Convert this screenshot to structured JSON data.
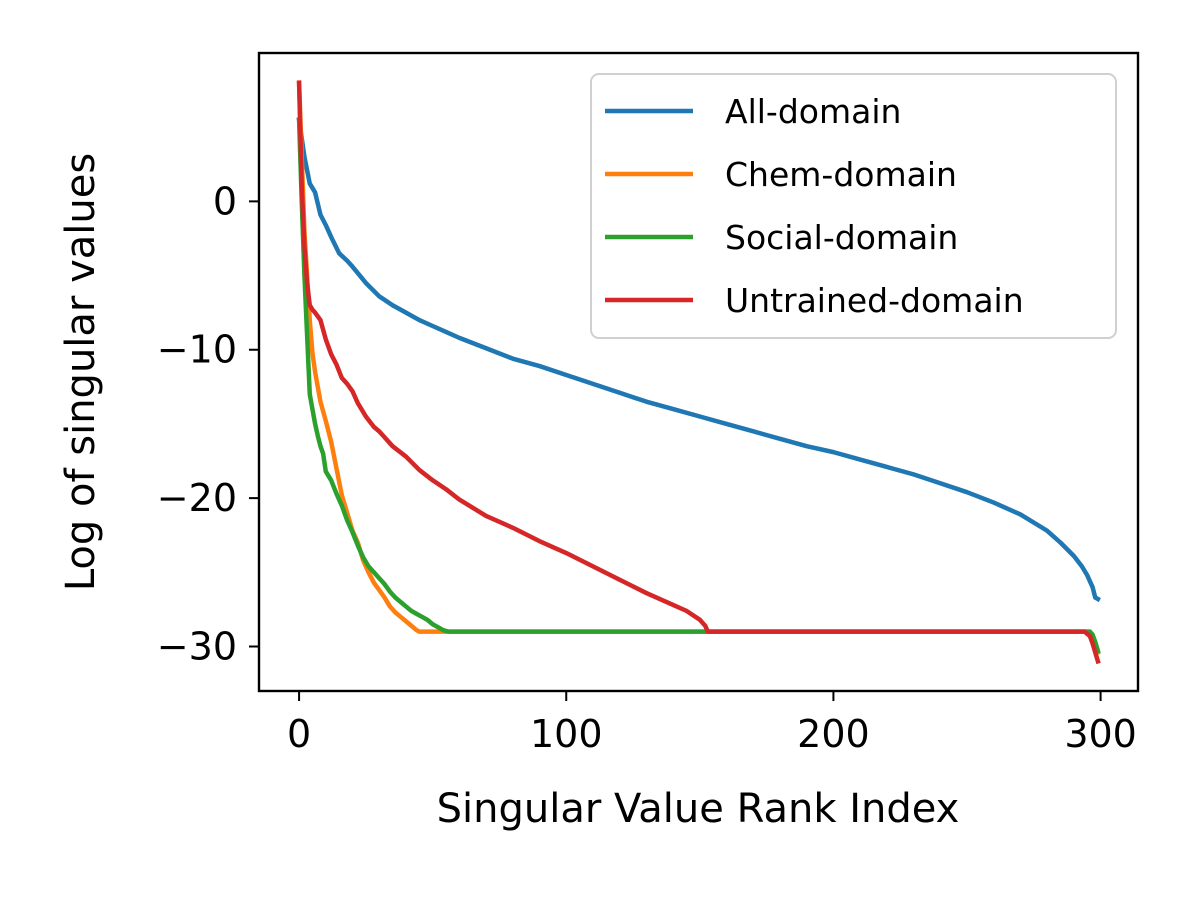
{
  "chart_data": {
    "type": "line",
    "xlabel": "Singular Value Rank Index",
    "ylabel": "Log of singular values",
    "xlim": [
      -15,
      314
    ],
    "ylim": [
      -33,
      10
    ],
    "xticks": [
      0,
      100,
      200,
      300
    ],
    "xtick_labels": [
      "0",
      "100",
      "200",
      "300"
    ],
    "yticks": [
      0,
      -10,
      -20,
      -30
    ],
    "ytick_labels": [
      "0",
      "−10",
      "−20",
      "−30"
    ],
    "grid": false,
    "legend_position": "upper right",
    "series": [
      {
        "name": "All-domain",
        "color": "#1f77b4",
        "x": [
          0,
          2,
          4,
          6,
          8,
          10,
          12,
          15,
          18,
          20,
          25,
          30,
          35,
          40,
          45,
          50,
          55,
          60,
          70,
          80,
          90,
          100,
          110,
          120,
          130,
          140,
          150,
          160,
          170,
          180,
          190,
          200,
          210,
          220,
          230,
          240,
          250,
          260,
          270,
          280,
          285,
          290,
          293,
          295,
          297,
          298,
          299
        ],
        "y": [
          5.5,
          3.0,
          1.2,
          0.6,
          -0.9,
          -1.6,
          -2.4,
          -3.5,
          -4.0,
          -4.4,
          -5.5,
          -6.4,
          -7.0,
          -7.5,
          -8.0,
          -8.4,
          -8.8,
          -9.2,
          -9.9,
          -10.6,
          -11.1,
          -11.7,
          -12.3,
          -12.9,
          -13.5,
          -14.0,
          -14.5,
          -15.0,
          -15.5,
          -16.0,
          -16.5,
          -16.9,
          -17.4,
          -17.9,
          -18.4,
          -19.0,
          -19.6,
          -20.3,
          -21.1,
          -22.2,
          -23.0,
          -23.9,
          -24.6,
          -25.2,
          -26.0,
          -26.7,
          -26.8
        ]
      },
      {
        "name": "Chem-domain",
        "color": "#ff7f0e",
        "x": [
          0,
          1,
          2,
          3,
          4,
          5,
          6,
          7,
          8,
          10,
          12,
          14,
          16,
          18,
          20,
          22,
          24,
          26,
          28,
          30,
          32,
          34,
          36,
          38,
          40,
          42,
          44,
          45,
          46,
          50,
          55,
          100,
          150,
          200,
          250,
          294,
          296,
          297,
          298,
          299
        ],
        "y": [
          8.0,
          3.0,
          -2.0,
          -5.0,
          -8.0,
          -10.2,
          -11.5,
          -12.5,
          -13.5,
          -14.8,
          -16.2,
          -18.0,
          -19.8,
          -21.0,
          -22.2,
          -23.0,
          -24.2,
          -25.0,
          -25.7,
          -26.2,
          -26.7,
          -27.3,
          -27.7,
          -28.0,
          -28.3,
          -28.6,
          -28.9,
          -29.0,
          -29.0,
          -29.0,
          -29.0,
          -29.0,
          -29.0,
          -29.0,
          -29.0,
          -29.0,
          -29.0,
          -29.3,
          -29.8,
          -30.4
        ]
      },
      {
        "name": "Social-domain",
        "color": "#2ca02c",
        "x": [
          0,
          1,
          2,
          3,
          4,
          5,
          6,
          7,
          8,
          9,
          10,
          12,
          14,
          16,
          18,
          20,
          22,
          24,
          26,
          28,
          30,
          32,
          34,
          36,
          38,
          40,
          42,
          44,
          46,
          48,
          50,
          52,
          54,
          56,
          60,
          100,
          150,
          200,
          250,
          294,
          296,
          297,
          298,
          299
        ],
        "y": [
          5.5,
          0.0,
          -5.0,
          -9.0,
          -13.0,
          -14.0,
          -15.0,
          -15.8,
          -16.5,
          -17.0,
          -18.2,
          -18.8,
          -19.7,
          -20.5,
          -21.5,
          -22.3,
          -23.2,
          -24.0,
          -24.6,
          -25.0,
          -25.4,
          -25.8,
          -26.3,
          -26.7,
          -27.0,
          -27.3,
          -27.6,
          -27.8,
          -28.0,
          -28.2,
          -28.5,
          -28.7,
          -28.9,
          -29.0,
          -29.0,
          -29.0,
          -29.0,
          -29.0,
          -29.0,
          -29.0,
          -29.0,
          -29.2,
          -29.7,
          -30.3
        ]
      },
      {
        "name": "Untrained-domain",
        "color": "#d62728",
        "x": [
          0,
          1,
          2,
          3,
          4,
          5,
          6,
          8,
          10,
          12,
          14,
          16,
          18,
          20,
          22,
          25,
          28,
          30,
          35,
          40,
          45,
          50,
          55,
          60,
          70,
          80,
          90,
          100,
          110,
          120,
          130,
          140,
          145,
          150,
          152,
          153,
          155,
          200,
          250,
          294,
          296,
          297,
          298,
          299
        ],
        "y": [
          8.0,
          1.0,
          -3.0,
          -5.5,
          -7.0,
          -7.3,
          -7.5,
          -8.0,
          -9.3,
          -10.3,
          -11.0,
          -11.9,
          -12.3,
          -12.8,
          -13.6,
          -14.5,
          -15.2,
          -15.5,
          -16.5,
          -17.2,
          -18.1,
          -18.8,
          -19.4,
          -20.1,
          -21.2,
          -22.0,
          -22.9,
          -23.7,
          -24.6,
          -25.5,
          -26.4,
          -27.2,
          -27.6,
          -28.2,
          -28.6,
          -29.0,
          -29.0,
          -29.0,
          -29.0,
          -29.0,
          -29.3,
          -29.8,
          -30.4,
          -31.0
        ]
      }
    ]
  }
}
